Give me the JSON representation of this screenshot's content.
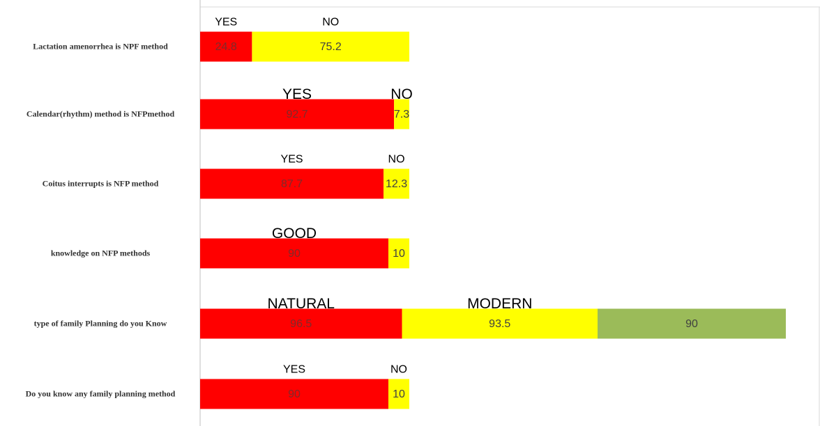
{
  "chart_data": {
    "type": "stacked_bar_horizontal",
    "categories": [
      "Lactation amenorrhea is NPF method",
      "Calendar(rhythm) method is NFPmethod",
      "Coitus interrupts is NFP method",
      "knowledge on NFP methods",
      "type of family Planning do you Know",
      "Do you know any family planning method"
    ],
    "series": [
      {
        "color": "#ff0000",
        "values": [
          24.8,
          92.7,
          87.7,
          90,
          96.5,
          90
        ]
      },
      {
        "color": "#ffff00",
        "values": [
          75.2,
          7.3,
          12.3,
          10,
          93.5,
          10
        ]
      },
      {
        "color": "#9bbb59",
        "values": [
          null,
          null,
          null,
          null,
          90,
          null
        ]
      }
    ],
    "bar_labels": [
      [
        "YES",
        "NO"
      ],
      [
        "YES",
        "NO"
      ],
      [
        "YES",
        "NO"
      ],
      [
        "GOOD"
      ],
      [
        "NATURAL",
        "MODERN"
      ],
      [
        "YES",
        "NO"
      ]
    ]
  }
}
